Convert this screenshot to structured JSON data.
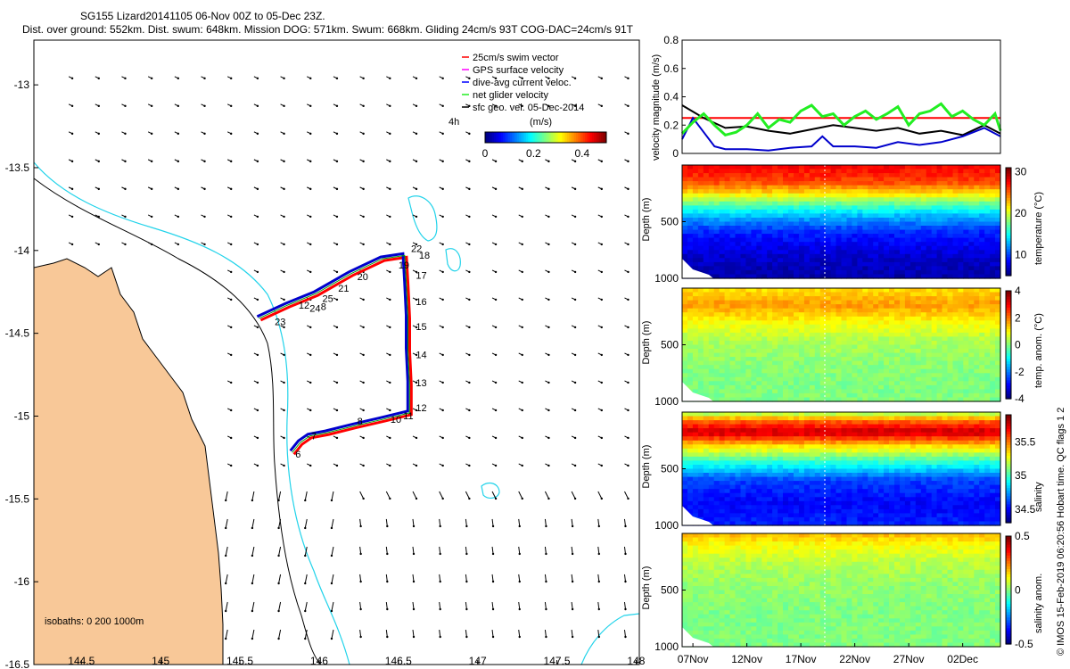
{
  "header": {
    "title": "SG155 Lizard20141105 06-Nov 00Z to 05-Dec 23Z.",
    "subtitle": "Dist. over ground: 552km. Dist. swum: 648km. Mission DOG: 571km. Swum: 668km. Gliding 24cm/s 93T COG-DAC=24cm/s 91T"
  },
  "footer": {
    "credit": "© IMOS 15-Feb-2019 06:20:56 Hobart time. QC flags 1 2"
  },
  "colors": {
    "land": "#f8c898",
    "coast": "#000000",
    "isobath_200": "#000000",
    "isobath_1000": "#22d3ea",
    "track_red": "#ff0000",
    "track_blue": "#0000cc",
    "track_green": "#00a000",
    "swim_red": "#ff0000",
    "net_green": "#22ee22",
    "geo_black": "#000000"
  },
  "chart_data": [
    {
      "type": "map",
      "name": "track-map",
      "xlim": [
        144.2,
        148.02
      ],
      "ylim": [
        -16.5,
        -12.73
      ],
      "x_ticks": [
        "144.5",
        "145",
        "145.5",
        "146",
        "146.5",
        "147",
        "147.5",
        "148"
      ],
      "x_tick_values": [
        144.5,
        145,
        145.5,
        146,
        146.5,
        147,
        147.5,
        148
      ],
      "y_ticks": [
        "-13",
        "-13.5",
        "-14",
        "-14.5",
        "-15",
        "-15.5",
        "-16",
        "-16.5"
      ],
      "y_tick_values": [
        -13,
        -13.5,
        -14,
        -14.5,
        -15,
        -15.5,
        -16,
        -16.5
      ],
      "legend": {
        "placement": "top-right",
        "entries": [
          "25cm/s swim vector",
          "GPS surface velocity",
          "dive-avg current veloc.",
          "net glider velocity",
          "sfc geo. vel. 05-Dec-2014"
        ],
        "entry_colors": [
          "#ff0000",
          "#ff00ff",
          "#0000ff",
          "#22ee22",
          "#000000"
        ]
      },
      "colorbar": {
        "title": "(m/s)",
        "side_label": "4h",
        "ticks": [
          "0",
          "0.2",
          "0.4"
        ],
        "tick_values": [
          0,
          0.2,
          0.4
        ],
        "range": [
          0,
          0.5
        ]
      },
      "isobaths_label": "isobaths: 0   200  1000m",
      "track": [
        [
          145.83,
          -15.22
        ],
        [
          145.88,
          -15.16
        ],
        [
          145.94,
          -15.12
        ],
        [
          146.05,
          -15.1
        ],
        [
          146.22,
          -15.06
        ],
        [
          146.4,
          -15.02
        ],
        [
          146.57,
          -14.98
        ],
        [
          146.57,
          -14.8
        ],
        [
          146.56,
          -14.6
        ],
        [
          146.56,
          -14.4
        ],
        [
          146.55,
          -14.2
        ],
        [
          146.54,
          -14.03
        ],
        [
          146.4,
          -14.05
        ],
        [
          146.2,
          -14.14
        ],
        [
          145.98,
          -14.26
        ],
        [
          145.8,
          -14.33
        ],
        [
          145.62,
          -14.41
        ]
      ],
      "track_labels": [
        {
          "t": "6",
          "x": 145.85,
          "y": -15.25
        },
        {
          "t": "7",
          "x": 145.95,
          "y": -15.14
        },
        {
          "t": "8",
          "x": 146.24,
          "y": -15.05
        },
        {
          "t": "10",
          "x": 146.45,
          "y": -15.04
        },
        {
          "t": "11",
          "x": 146.53,
          "y": -15.02
        },
        {
          "t": "12",
          "x": 146.61,
          "y": -14.97
        },
        {
          "t": "13",
          "x": 146.61,
          "y": -14.82
        },
        {
          "t": "14",
          "x": 146.61,
          "y": -14.65
        },
        {
          "t": "15",
          "x": 146.61,
          "y": -14.48
        },
        {
          "t": "16",
          "x": 146.61,
          "y": -14.33
        },
        {
          "t": "17",
          "x": 146.61,
          "y": -14.17
        },
        {
          "t": "18",
          "x": 146.63,
          "y": -14.05
        },
        {
          "t": "19",
          "x": 146.5,
          "y": -14.11
        },
        {
          "t": "20",
          "x": 146.24,
          "y": -14.18
        },
        {
          "t": "21",
          "x": 146.12,
          "y": -14.25
        },
        {
          "t": "25",
          "x": 146.02,
          "y": -14.31
        },
        {
          "t": "24",
          "x": 145.94,
          "y": -14.37
        },
        {
          "t": "12",
          "x": 145.87,
          "y": -14.35
        },
        {
          "t": "8",
          "x": 146.01,
          "y": -14.36
        },
        {
          "t": "23",
          "x": 145.72,
          "y": -14.45
        },
        {
          "t": "22",
          "x": 146.58,
          "y": -14.01
        }
      ]
    },
    {
      "type": "line",
      "name": "velocity-magnitude",
      "xlim": [
        0,
        29.5
      ],
      "ylim": [
        0,
        0.8
      ],
      "ylabel": "velocity magnitude (m/s)",
      "y_ticks": [
        "0",
        "0.2",
        "0.4",
        "0.6",
        "0.8"
      ],
      "y_tick_values": [
        0,
        0.2,
        0.4,
        0.6,
        0.8
      ],
      "series": [
        {
          "name": "swim vector",
          "color": "#ff0000",
          "x": [
            0,
            29.5
          ],
          "values": [
            0.25,
            0.25
          ]
        },
        {
          "name": "geo velocity",
          "color": "#000000",
          "x": [
            0,
            2,
            4,
            6,
            8,
            10,
            12,
            14,
            16,
            18,
            20,
            22,
            24,
            26,
            28,
            29.5
          ],
          "values": [
            0.34,
            0.25,
            0.18,
            0.19,
            0.16,
            0.14,
            0.17,
            0.2,
            0.18,
            0.16,
            0.18,
            0.14,
            0.16,
            0.13,
            0.2,
            0.14
          ]
        },
        {
          "name": "dive-avg current",
          "color": "#0000cc",
          "x": [
            0,
            1,
            2,
            3,
            4,
            6,
            8,
            10,
            12,
            13,
            14,
            16,
            18,
            20,
            22,
            24,
            26,
            28,
            29.5
          ],
          "values": [
            0.1,
            0.25,
            0.15,
            0.05,
            0.03,
            0.03,
            0.02,
            0.04,
            0.05,
            0.12,
            0.05,
            0.05,
            0.04,
            0.08,
            0.06,
            0.08,
            0.12,
            0.18,
            0.12
          ]
        },
        {
          "name": "net glider",
          "color": "#22ee22",
          "x": [
            0,
            1,
            2,
            3,
            4,
            5,
            6,
            7,
            8,
            9,
            10,
            11,
            12,
            13,
            14,
            15,
            16,
            17,
            18,
            19,
            20,
            21,
            22,
            23,
            24,
            25,
            26,
            27,
            28,
            29,
            29.5
          ],
          "values": [
            0.14,
            0.22,
            0.28,
            0.2,
            0.13,
            0.15,
            0.2,
            0.28,
            0.18,
            0.24,
            0.22,
            0.3,
            0.34,
            0.26,
            0.28,
            0.2,
            0.26,
            0.3,
            0.24,
            0.28,
            0.33,
            0.2,
            0.28,
            0.3,
            0.35,
            0.26,
            0.3,
            0.24,
            0.2,
            0.28,
            0.16
          ]
        }
      ]
    },
    {
      "type": "heatmap",
      "name": "temperature-section",
      "ylabel": "Depth (m)",
      "y_ticks": [
        "500",
        "1000"
      ],
      "y_tick_values": [
        500,
        1000
      ],
      "ylim": [
        1000,
        0
      ],
      "colorbar_label": "temperature (°C)",
      "colorbar_ticks": [
        "30",
        "20",
        "10"
      ],
      "colorbar_tick_values": [
        30,
        20,
        10
      ],
      "colorbar_range": [
        5,
        31
      ],
      "profile_depths": [
        0,
        150,
        250,
        350,
        450,
        600,
        800,
        1000
      ],
      "profile_values": [
        28,
        26,
        22,
        17,
        13,
        9,
        7,
        6
      ]
    },
    {
      "type": "heatmap",
      "name": "temperature-anomaly-section",
      "ylabel": "Depth (m)",
      "y_ticks": [
        "500",
        "1000"
      ],
      "y_tick_values": [
        500,
        1000
      ],
      "ylim": [
        1000,
        0
      ],
      "colorbar_label": "temp. anom. (°C)",
      "colorbar_ticks": [
        "4",
        "2",
        "0",
        "-2",
        "-4"
      ],
      "colorbar_tick_values": [
        4,
        2,
        0,
        -2,
        -4
      ],
      "colorbar_range": [
        -4,
        4
      ],
      "profile_depths": [
        0,
        150,
        300,
        450,
        650,
        850,
        1000
      ],
      "profile_values": [
        1.2,
        1.8,
        1.0,
        0.4,
        0.1,
        0.0,
        0.0
      ]
    },
    {
      "type": "heatmap",
      "name": "salinity-section",
      "ylabel": "Depth (m)",
      "y_ticks": [
        "500",
        "1000"
      ],
      "y_tick_values": [
        500,
        1000
      ],
      "ylim": [
        1000,
        0
      ],
      "colorbar_label": "salinity",
      "colorbar_ticks": [
        "35.5",
        "35",
        "34.5"
      ],
      "colorbar_tick_values": [
        35.5,
        35,
        34.5
      ],
      "colorbar_range": [
        34.3,
        35.9
      ],
      "profile_depths": [
        0,
        80,
        180,
        300,
        450,
        600,
        800,
        1000
      ],
      "profile_values": [
        35.1,
        35.55,
        35.8,
        35.35,
        34.95,
        34.6,
        34.5,
        34.55
      ]
    },
    {
      "type": "heatmap",
      "name": "salinity-anomaly-section",
      "ylabel": "Depth (m)",
      "y_ticks": [
        "500",
        "1000"
      ],
      "y_tick_values": [
        500,
        1000
      ],
      "ylim": [
        1000,
        0
      ],
      "colorbar_label": "salinity anom.",
      "colorbar_ticks": [
        "0.5",
        "0",
        "-0.5"
      ],
      "colorbar_tick_values": [
        0.5,
        0,
        -0.5
      ],
      "colorbar_range": [
        -0.5,
        0.5
      ],
      "profile_depths": [
        0,
        100,
        250,
        450,
        700,
        1000
      ],
      "profile_values": [
        0.2,
        0.12,
        0.06,
        0.02,
        0.0,
        0.0
      ]
    },
    {
      "type": "axis",
      "name": "time-axis",
      "xlim": [
        0,
        29.5
      ],
      "x_ticks": [
        "07Nov",
        "12Nov",
        "17Nov",
        "22Nov",
        "27Nov",
        "02Dec"
      ],
      "x_tick_values": [
        1,
        6,
        11,
        16,
        21,
        26
      ]
    }
  ]
}
